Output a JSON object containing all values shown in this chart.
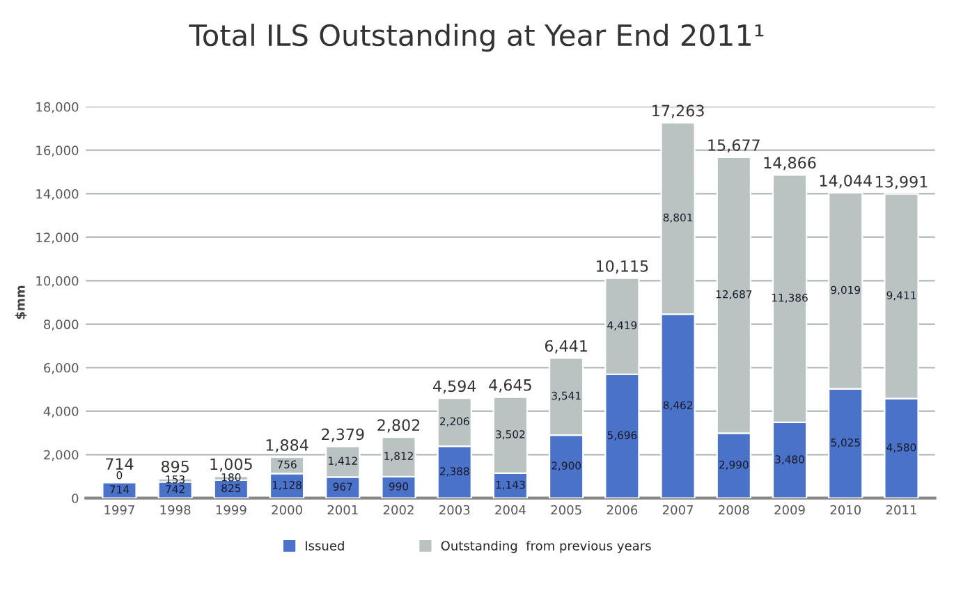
{
  "chart_data": {
    "type": "bar",
    "title": "Total ILS Outstanding at Year End 2011¹",
    "ylabel": "$mm",
    "stacked": true,
    "categories": [
      "1997",
      "1998",
      "1999",
      "2000",
      "2001",
      "2002",
      "2003",
      "2004",
      "2005",
      "2006",
      "2007",
      "2008",
      "2009",
      "2010",
      "2011"
    ],
    "series": [
      {
        "name": "Issued",
        "color": "#4a72c8",
        "values": [
          714,
          742,
          825,
          1128,
          967,
          990,
          2388,
          1143,
          2900,
          5696,
          8462,
          2990,
          3480,
          5025,
          4580
        ],
        "value_labels": [
          "714",
          "742",
          "825",
          "1,128",
          "967",
          "990",
          "2,388",
          "1,143",
          "2,900",
          "5,696",
          "8,462",
          "2,990",
          "3,480",
          "5,025",
          "4,580"
        ]
      },
      {
        "name": "Outstanding  from previous years",
        "color": "#b9c3c1",
        "values": [
          0,
          153,
          180,
          756,
          1412,
          1812,
          2206,
          3502,
          3541,
          4419,
          8801,
          12687,
          11386,
          9019,
          9411
        ],
        "value_labels": [
          "0",
          "153",
          "180",
          "756",
          "1,412",
          "1,812",
          "2,206",
          "3,502",
          "3,541",
          "4,419",
          "8,801",
          "12,687",
          "11,386",
          "9,019",
          "9,411"
        ]
      }
    ],
    "totals": [
      "714",
      "895",
      "1,005",
      "1,884",
      "2,379",
      "2,802",
      "4,594",
      "4,645",
      "6,441",
      "10,115",
      "17,263",
      "15,677",
      "14,866",
      "14,044",
      "13,991"
    ],
    "ylim": [
      0,
      18000
    ],
    "yticks": [
      0,
      {
        "value": 2000,
        "label": "2,000"
      },
      {
        "value": 4000,
        "label": "4,000"
      },
      {
        "value": 6000,
        "label": "6,000"
      },
      {
        "value": 8000,
        "label": "8,000"
      },
      {
        "value": 10000,
        "label": "10,000"
      },
      {
        "value": 12000,
        "label": "12,000"
      },
      {
        "value": 14000,
        "label": "14,000"
      },
      {
        "value": 16000,
        "label": "16,000"
      },
      {
        "value": 18000,
        "label": "18,000"
      }
    ],
    "grid": "y",
    "legend": "bottom"
  }
}
